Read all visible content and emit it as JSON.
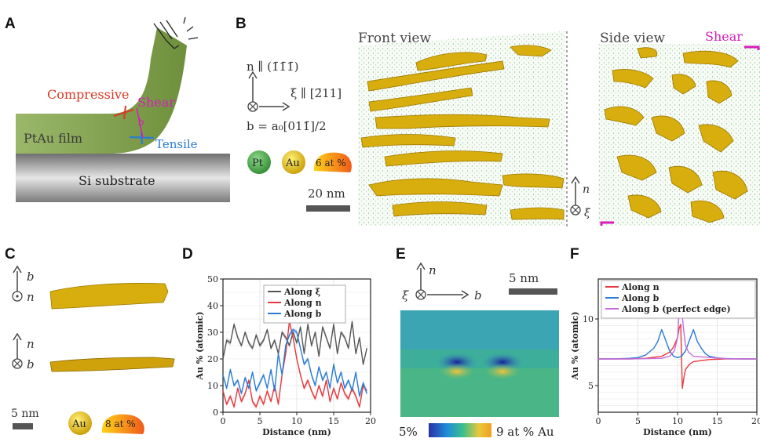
{
  "panels": {
    "A": "A",
    "B": "B",
    "C": "C",
    "D": "D",
    "E": "E",
    "F": "F"
  },
  "panel_a": {
    "compressive": "Compressive",
    "shear": "Shear",
    "tensile": "Tensile",
    "film": "PtAu film",
    "substrate": "Si substrate",
    "b_symbol": "b"
  },
  "panel_b": {
    "n_axis": "n ∥ (1̄1̄1̄)",
    "xi_axis": "ξ ∥ [2̄11]",
    "b_vec": "b = a₀[011̄]/2",
    "legend_pt": "Pt",
    "legend_au": "Au",
    "legend_iso": "6 at %",
    "scalebar": "20 nm",
    "front_view": "Front view",
    "side_view": "Side view",
    "shear": "Shear",
    "n_label": "n",
    "xi_label": "ξ"
  },
  "panel_c": {
    "b_label": "b",
    "n_label": "n",
    "n_label2": "n",
    "b_label2": "b",
    "scalebar": "5 nm",
    "legend_au": "Au",
    "legend_iso": "8 at %"
  },
  "panel_e": {
    "n_label": "n",
    "xi_label": "ξ",
    "b_label": "b",
    "scalebar": "5 nm",
    "cbar_min": "5%",
    "cbar_max": "9 at % Au"
  },
  "colors": {
    "red": "#e8383d",
    "blue": "#2a7bd4",
    "gray": "#555555",
    "violet": "#c86bdc",
    "magenta": "#d61fb8",
    "olive": "#8aa84a",
    "gold": "#e8b800"
  },
  "chart_data": [
    {
      "type": "line",
      "panel": "D",
      "xlabel": "Distance (nm)",
      "ylabel": "Au % (atomic)",
      "xlim": [
        0,
        20
      ],
      "ylim": [
        0,
        50
      ],
      "xticks": [
        0,
        5,
        10,
        15,
        20
      ],
      "yticks": [
        0,
        10,
        20,
        30,
        40,
        50
      ],
      "legend_position": "top-center",
      "series": [
        {
          "name": "Along ξ",
          "color": "#555555",
          "x": [
            0,
            0.5,
            1,
            1.5,
            2,
            2.5,
            3,
            3.5,
            4,
            4.5,
            5,
            5.5,
            6,
            6.5,
            7,
            7.5,
            8,
            8.5,
            9,
            9.5,
            10,
            10.5,
            11,
            11.5,
            12,
            12.5,
            13,
            13.5,
            14,
            14.5,
            15,
            15.5,
            16,
            16.5,
            17,
            17.5,
            18,
            18.5,
            19,
            19.5
          ],
          "y": [
            20,
            27,
            26,
            33,
            28,
            25,
            30,
            26,
            24,
            29,
            25,
            27,
            31,
            24,
            27,
            22,
            30,
            28,
            25,
            30,
            26,
            32,
            22,
            33,
            25,
            30,
            21,
            32,
            28,
            24,
            33,
            22,
            30,
            28,
            24,
            34,
            22,
            28,
            18,
            24
          ]
        },
        {
          "name": "Along n",
          "color": "#e8383d",
          "x": [
            0,
            0.5,
            1,
            1.5,
            2,
            2.5,
            3,
            3.5,
            4,
            4.5,
            5,
            5.5,
            6,
            6.5,
            7,
            7.5,
            8,
            8.5,
            9,
            9.5,
            10,
            10.5,
            11,
            11.5,
            12,
            12.5,
            13,
            13.5,
            14,
            14.5,
            15,
            15.5,
            16,
            16.5,
            17,
            17.5,
            18,
            18.5,
            19,
            19.5
          ],
          "y": [
            8,
            3,
            6,
            2,
            9,
            4,
            7,
            12,
            4,
            2,
            6,
            3,
            8,
            4,
            10,
            3,
            14,
            22,
            34,
            28,
            20,
            14,
            9,
            12,
            8,
            5,
            10,
            6,
            12,
            4,
            9,
            5,
            11,
            7,
            5,
            9,
            6,
            2,
            10,
            8
          ]
        },
        {
          "name": "Along b",
          "color": "#2a7bd4",
          "x": [
            0,
            0.5,
            1,
            1.5,
            2,
            2.5,
            3,
            3.5,
            4,
            4.5,
            5,
            5.5,
            6,
            6.5,
            7,
            7.5,
            8,
            8.5,
            9,
            9.5,
            10,
            10.5,
            11,
            11.5,
            12,
            12.5,
            13,
            13.5,
            14,
            14.5,
            15,
            15.5,
            16,
            16.5,
            17,
            17.5,
            18,
            18.5,
            19,
            19.5
          ],
          "y": [
            14,
            9,
            16,
            10,
            12,
            7,
            13,
            9,
            15,
            8,
            11,
            14,
            9,
            16,
            8,
            22,
            14,
            25,
            29,
            31,
            30,
            24,
            18,
            20,
            14,
            10,
            17,
            12,
            15,
            9,
            18,
            11,
            15,
            9,
            12,
            8,
            15,
            6,
            11,
            7
          ]
        }
      ]
    },
    {
      "type": "line",
      "panel": "F",
      "xlabel": "Distance (nm)",
      "ylabel": "Au % (atomic)",
      "xlim": [
        0,
        20
      ],
      "ylim": [
        3,
        13
      ],
      "xticks": [
        0,
        5,
        10,
        15,
        20
      ],
      "yticks": [
        5,
        10
      ],
      "legend_position": "top-left",
      "series": [
        {
          "name": "Along n",
          "color": "#e8383d",
          "x": [
            0,
            2,
            4,
            6,
            8,
            9,
            9.5,
            10,
            10.2,
            10.4,
            10.5,
            10.6,
            10.8,
            11,
            11.5,
            12,
            14,
            16,
            18,
            20
          ],
          "y": [
            7,
            7,
            7,
            7.05,
            7.2,
            7.5,
            7.9,
            8.6,
            9.3,
            9.6,
            7,
            4.8,
            5.6,
            6.2,
            6.6,
            6.8,
            6.95,
            7,
            7,
            7
          ]
        },
        {
          "name": "Along b",
          "color": "#2a7bd4",
          "x": [
            0,
            2,
            4,
            5,
            6,
            7,
            7.5,
            8,
            8.5,
            9,
            9.5,
            10,
            10.5,
            11,
            11.5,
            12,
            12.5,
            13,
            13.5,
            14,
            15,
            16,
            18,
            20
          ],
          "y": [
            7,
            7,
            7.05,
            7.1,
            7.3,
            7.8,
            8.3,
            9.2,
            8.4,
            7.6,
            7.2,
            7.1,
            7.2,
            7.6,
            8.4,
            9.2,
            8.3,
            7.8,
            7.4,
            7.2,
            7.08,
            7.03,
            7,
            7
          ]
        },
        {
          "name": "Along b (perfect edge)",
          "color": "#c86bdc",
          "x": [
            0,
            4,
            8,
            9,
            9.6,
            10,
            10.2,
            10.4,
            10.5,
            10.6,
            10.8,
            11,
            11.4,
            12,
            16,
            20
          ],
          "y": [
            7,
            7,
            7.05,
            7.2,
            7.6,
            8.6,
            10.5,
            11.2,
            10.8,
            10.2,
            9,
            8,
            7.5,
            7.2,
            7.02,
            7
          ]
        }
      ]
    }
  ]
}
